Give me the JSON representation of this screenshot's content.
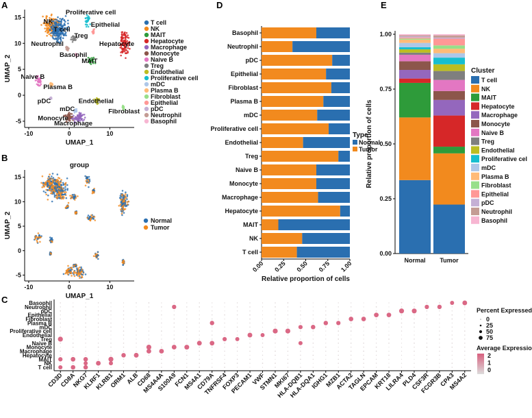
{
  "panel_labels": [
    "A",
    "B",
    "C",
    "D",
    "E"
  ],
  "colors": {
    "T cell": "#2a6fb0",
    "NK": "#f28a1e",
    "MAIT": "#2e9b3a",
    "Hepatocyte": "#d62728",
    "Macrophage": "#9467bd",
    "Monocyte": "#8c564b",
    "Naive B": "#e377c2",
    "Treg": "#7f7f7f",
    "Endothelial": "#bcbd22",
    "Proliferative cell": "#17becf",
    "mDC": "#aec7e8",
    "Plasma B": "#ffbb78",
    "Fibroblast": "#98df8a",
    "Epithelial": "#ff9896",
    "pDC": "#c5b0d5",
    "Neutrophil": "#c49c94",
    "Basophil": "#f7b6d2",
    "Normal": "#2a6fb0",
    "Tumor": "#f28a1e"
  },
  "chart_data": [
    {
      "id": "A",
      "type": "scatter",
      "title": "",
      "xlabel": "UMAP_1",
      "ylabel": "UMAP_2",
      "xlim": [
        -11,
        16
      ],
      "ylim": [
        -6.2,
        16.5
      ],
      "xticks": [
        -10,
        0,
        10
      ],
      "yticks": [
        -5,
        0,
        5,
        10,
        15
      ],
      "legend": [
        "T cell",
        "NK",
        "MAIT",
        "Hepatocyte",
        "Macrophage",
        "Monocyte",
        "Naive B",
        "Treg",
        "Endothelial",
        "Proliferative cell",
        "mDC",
        "Plasma B",
        "Fibroblast",
        "Epithelial",
        "pDC",
        "Neutrophil",
        "Basophil"
      ],
      "clusters": [
        {
          "name": "NK",
          "cx": -4.5,
          "cy": 13.5,
          "rx": 2.8,
          "ry": 2.5
        },
        {
          "name": "T cell",
          "cx": -2.6,
          "cy": 12.5,
          "rx": 2.8,
          "ry": 3.2
        },
        {
          "name": "Proliferative cell",
          "cx": 4.5,
          "cy": 14.5,
          "rx": 0.8,
          "ry": 1.6
        },
        {
          "name": "Epithelial",
          "cx": 6.0,
          "cy": 12.2,
          "rx": 0.4,
          "ry": 0.6
        },
        {
          "name": "Treg",
          "cx": 1.2,
          "cy": 11.0,
          "rx": 1.2,
          "ry": 1.0
        },
        {
          "name": "Hepatocyte",
          "cx": 13.5,
          "cy": 10.0,
          "rx": 1.6,
          "ry": 3.2
        },
        {
          "name": "Basophil",
          "cx": 1.7,
          "cy": 7.8,
          "rx": 0.3,
          "ry": 0.4
        },
        {
          "name": "MAIT",
          "cx": 5.3,
          "cy": 6.7,
          "rx": 1.4,
          "ry": 1.0
        },
        {
          "name": "Neutrophil",
          "cx": -0.5,
          "cy": 9.0,
          "rx": 0.5,
          "ry": 0.5
        },
        {
          "name": "Naive B",
          "cx": -7.6,
          "cy": 2.7,
          "rx": 1.2,
          "ry": 1.4
        },
        {
          "name": "Plasma B",
          "cx": -4.4,
          "cy": 2.1,
          "rx": 0.5,
          "ry": 0.7
        },
        {
          "name": "Endothelial",
          "cx": 6.7,
          "cy": -1.0,
          "rx": 0.8,
          "ry": 1.0
        },
        {
          "name": "Fibroblast",
          "cx": 13.3,
          "cy": -2.4,
          "rx": 0.4,
          "ry": 0.7
        },
        {
          "name": "Monocyte",
          "cx": -0.3,
          "cy": -4.2,
          "rx": 1.6,
          "ry": 1.3
        },
        {
          "name": "Macrophage",
          "cx": 2.4,
          "cy": -4.3,
          "rx": 2.0,
          "ry": 1.5
        },
        {
          "name": "mDC",
          "cx": 1.5,
          "cy": -3.0,
          "rx": 0.6,
          "ry": 0.5
        },
        {
          "name": "pDC",
          "cx": -4.6,
          "cy": -0.6,
          "rx": 0.3,
          "ry": 0.3
        }
      ],
      "annotations": [
        {
          "text": "NK",
          "x": -5.2,
          "y": 13.8
        },
        {
          "text": "Proliferative cell",
          "x": 5.3,
          "y": 15.6
        },
        {
          "text": "Epithelial",
          "x": 8.9,
          "y": 13.2
        },
        {
          "text": "T cell",
          "x": -1.8,
          "y": 12.3
        },
        {
          "text": "Treg",
          "x": 2.9,
          "y": 11.1
        },
        {
          "text": "Neutrophil",
          "x": -5.4,
          "y": 9.5
        },
        {
          "text": "Hepatocyte",
          "x": 11.7,
          "y": 9.5
        },
        {
          "text": "Basophil",
          "x": 1.0,
          "y": 7.4
        },
        {
          "text": "MAIT",
          "x": 5.0,
          "y": 6.2
        },
        {
          "text": "Naive B",
          "x": -9.0,
          "y": 3.2
        },
        {
          "text": "Plasma B",
          "x": -2.8,
          "y": 1.2
        },
        {
          "text": "pDC",
          "x": -6.2,
          "y": -1.5
        },
        {
          "text": "Endothelial",
          "x": 6.6,
          "y": -1.5
        },
        {
          "text": "mDC",
          "x": -0.5,
          "y": -3.0
        },
        {
          "text": "Fibroblast",
          "x": 13.5,
          "y": -3.5
        },
        {
          "text": "Monocyte",
          "x": -4.0,
          "y": -4.8
        },
        {
          "text": "Macrophage",
          "x": 1.0,
          "y": -5.8
        }
      ]
    },
    {
      "id": "B",
      "type": "scatter",
      "title": "group",
      "xlabel": "UMAP_1",
      "ylabel": "UMAP_2",
      "xlim": [
        -11,
        16
      ],
      "ylim": [
        -6.2,
        16.5
      ],
      "xticks": [
        -10,
        0,
        10
      ],
      "yticks": [
        -5,
        0,
        5,
        10,
        15
      ],
      "legend": [
        "Normal",
        "Tumor"
      ]
    },
    {
      "id": "D",
      "type": "bar",
      "orientation": "horizontal",
      "stacked": true,
      "xlabel": "Relative proportion of cells",
      "xlim": [
        0,
        1
      ],
      "xticks": [
        0.0,
        0.25,
        0.5,
        0.75,
        1.0
      ],
      "xtick_labels": [
        "0.00",
        "0.25",
        "0.50",
        "0.75",
        "1.00"
      ],
      "legend_title": "Type",
      "legend": [
        "Normal",
        "Tumor"
      ],
      "categories": [
        "Basophil",
        "Neutrophil",
        "pDC",
        "Epithelial",
        "Fibroblast",
        "Plasma B",
        "mDC",
        "Proliferative cell",
        "Endothelial",
        "Treg",
        "Naive B",
        "Monocyte",
        "Macrophage",
        "Hepatocyte",
        "MAIT",
        "NK",
        "T cell"
      ],
      "series": [
        {
          "name": "Tumor",
          "values": [
            0.62,
            0.35,
            0.8,
            0.73,
            0.79,
            0.7,
            0.63,
            0.76,
            0.47,
            0.87,
            0.62,
            0.62,
            0.64,
            0.89,
            0.19,
            0.46,
            0.4
          ]
        },
        {
          "name": "Normal",
          "values": [
            0.38,
            0.65,
            0.2,
            0.27,
            0.21,
            0.3,
            0.37,
            0.24,
            0.53,
            0.13,
            0.38,
            0.38,
            0.36,
            0.11,
            0.81,
            0.54,
            0.6
          ]
        }
      ]
    },
    {
      "id": "E",
      "type": "bar",
      "stacked": true,
      "ylabel": "Relative proportion of cells",
      "ylim": [
        0,
        1
      ],
      "yticks": [
        0.0,
        0.25,
        0.5,
        0.75,
        1.0
      ],
      "ytick_labels": [
        "0.00",
        "0.25",
        "0.50",
        "0.75",
        "1.00"
      ],
      "categories": [
        "Normal",
        "Tumor"
      ],
      "legend_title": "Cluster",
      "legend": [
        "T cell",
        "NK",
        "MAIT",
        "Hepatocyte",
        "Macrophage",
        "Monocyte",
        "Naive B",
        "Treg",
        "Endothelial",
        "Proliferative cel",
        "mDC",
        "Plasma B",
        "Fibroblast",
        "Epithelial",
        "pDC",
        "Neutrophil",
        "Basophil"
      ],
      "series": [
        {
          "name": "T cell",
          "values": [
            0.34,
            0.22
          ]
        },
        {
          "name": "NK",
          "values": [
            0.29,
            0.23
          ]
        },
        {
          "name": "MAIT",
          "values": [
            0.16,
            0.03
          ]
        },
        {
          "name": "Hepatocyte",
          "values": [
            0.02,
            0.14
          ]
        },
        {
          "name": "Macrophage",
          "values": [
            0.04,
            0.07
          ]
        },
        {
          "name": "Monocyte",
          "values": [
            0.04,
            0.04
          ]
        },
        {
          "name": "Naive B",
          "values": [
            0.03,
            0.05
          ]
        },
        {
          "name": "Treg",
          "values": [
            0.01,
            0.04
          ]
        },
        {
          "name": "Endothelial",
          "values": [
            0.015,
            0.03
          ]
        },
        {
          "name": "Proliferative cell",
          "values": [
            0.01,
            0.03
          ]
        },
        {
          "name": "mDC",
          "values": [
            0.02,
            0.02
          ]
        },
        {
          "name": "Plasma B",
          "values": [
            0.015,
            0.02
          ]
        },
        {
          "name": "Fibroblast",
          "values": [
            0.005,
            0.015
          ]
        },
        {
          "name": "Epithelial",
          "values": [
            0.005,
            0.03
          ]
        },
        {
          "name": "pDC",
          "values": [
            0.005,
            0.005
          ]
        },
        {
          "name": "Neutrophil",
          "values": [
            0.005,
            0.01
          ]
        },
        {
          "name": "Basophil",
          "values": [
            0.005,
            0.005
          ]
        }
      ]
    },
    {
      "id": "C",
      "type": "scatter",
      "subtype": "dotplot",
      "genes": [
        "CD3D",
        "CD8A",
        "NKG7",
        "KLRF1",
        "KLRB1",
        "ORM1",
        "ALB",
        "CD68",
        "MS4A4A",
        "S100A9",
        "FCN1",
        "MS4A1",
        "CD79A",
        "TNFRSF4",
        "FOXP3",
        "PECAM1",
        "VWF",
        "STMN1",
        "MKI67",
        "HLA-DQB1",
        "HLA-DQA1",
        "IGHG1",
        "MZB1",
        "ACTA2",
        "TAGLN",
        "EPCAM",
        "KRT18",
        "LILRA4",
        "PLD4",
        "CSF3R",
        "FCGR3B",
        "CPA3",
        "MS4A2"
      ],
      "rows": [
        "Basophil",
        "Neutrophil",
        "pDC",
        "Epithelial",
        "Fibroblast",
        "Plasma B",
        "mDC",
        "Proliferative cell",
        "Endothelial",
        "Treg",
        "Naive B",
        "Monocyte",
        "Macrophage",
        "Hepatocyte",
        "MAIT",
        "NK",
        "T cell"
      ],
      "size_legend_title": "Percent Expressed",
      "size_legend": [
        0,
        25,
        50,
        75
      ],
      "color_legend_title": "Average Expression",
      "color_legend": [
        2,
        1,
        0
      ],
      "high_expression": [
        {
          "row": "T cell",
          "gene": "CD3D"
        },
        {
          "row": "MAIT",
          "gene": "CD3D"
        },
        {
          "row": "Treg",
          "gene": "CD3D"
        },
        {
          "row": "T cell",
          "gene": "CD8A"
        },
        {
          "row": "MAIT",
          "gene": "CD8A"
        },
        {
          "row": "NK",
          "gene": "NKG7"
        },
        {
          "row": "T cell",
          "gene": "NKG7"
        },
        {
          "row": "MAIT",
          "gene": "NKG7"
        },
        {
          "row": "NK",
          "gene": "KLRF1"
        },
        {
          "row": "MAIT",
          "gene": "KLRB1"
        },
        {
          "row": "NK",
          "gene": "KLRB1"
        },
        {
          "row": "Hepatocyte",
          "gene": "ORM1"
        },
        {
          "row": "Hepatocyte",
          "gene": "ALB"
        },
        {
          "row": "Macrophage",
          "gene": "CD68"
        },
        {
          "row": "Monocyte",
          "gene": "CD68"
        },
        {
          "row": "Macrophage",
          "gene": "MS4A4A"
        },
        {
          "row": "Monocyte",
          "gene": "S100A9"
        },
        {
          "row": "Neutrophil",
          "gene": "S100A9"
        },
        {
          "row": "Monocyte",
          "gene": "FCN1"
        },
        {
          "row": "Naive B",
          "gene": "MS4A1"
        },
        {
          "row": "Naive B",
          "gene": "CD79A"
        },
        {
          "row": "Plasma B",
          "gene": "CD79A"
        },
        {
          "row": "Treg",
          "gene": "TNFRSF4"
        },
        {
          "row": "Treg",
          "gene": "FOXP3"
        },
        {
          "row": "Endothelial",
          "gene": "PECAM1"
        },
        {
          "row": "Endothelial",
          "gene": "VWF"
        },
        {
          "row": "Proliferative cell",
          "gene": "STMN1"
        },
        {
          "row": "Proliferative cell",
          "gene": "MKI67"
        },
        {
          "row": "mDC",
          "gene": "HLA-DQB1"
        },
        {
          "row": "mDC",
          "gene": "HLA-DQA1"
        },
        {
          "row": "Naive B",
          "gene": "HLA-DQB1"
        },
        {
          "row": "Plasma B",
          "gene": "IGHG1"
        },
        {
          "row": "Plasma B",
          "gene": "MZB1"
        },
        {
          "row": "Fibroblast",
          "gene": "ACTA2"
        },
        {
          "row": "Fibroblast",
          "gene": "TAGLN"
        },
        {
          "row": "Epithelial",
          "gene": "EPCAM"
        },
        {
          "row": "Epithelial",
          "gene": "KRT18"
        },
        {
          "row": "pDC",
          "gene": "LILRA4"
        },
        {
          "row": "pDC",
          "gene": "PLD4"
        },
        {
          "row": "Neutrophil",
          "gene": "CSF3R"
        },
        {
          "row": "Neutrophil",
          "gene": "FCGR3B"
        },
        {
          "row": "Basophil",
          "gene": "CPA3"
        },
        {
          "row": "Basophil",
          "gene": "MS4A2"
        }
      ]
    }
  ]
}
